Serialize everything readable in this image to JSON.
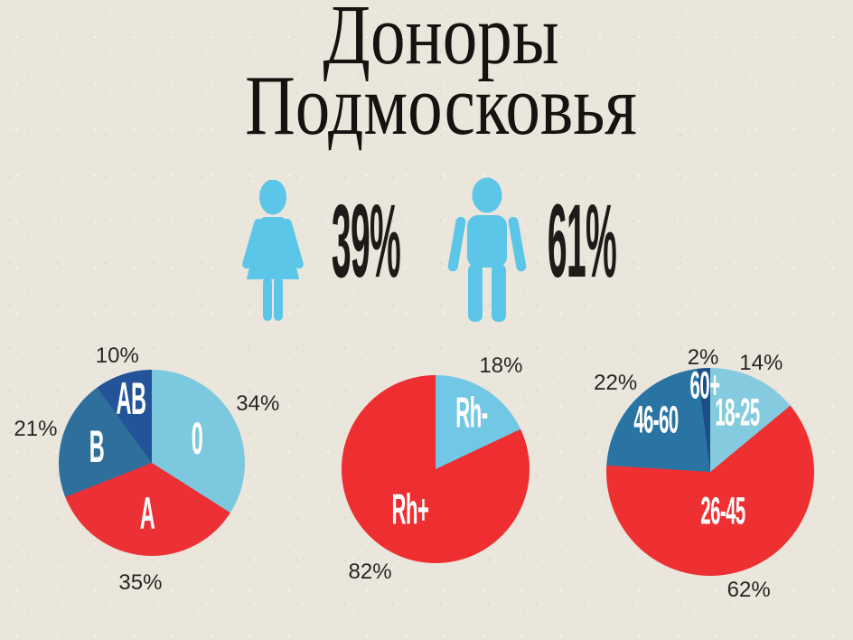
{
  "title": {
    "line1": "Доноры",
    "line2": "Подмосковья"
  },
  "gender_stats": {
    "female_percent": "39%",
    "male_percent": "61%"
  },
  "colors": {
    "background": "#eae6dc",
    "title_text": "#15120f",
    "callout_text": "#2a2523",
    "icon_blue": "#5cc6e8",
    "pie_label_text": "#ffffff"
  },
  "chart_data": [
    {
      "type": "pie",
      "name": "blood-groups",
      "start": "top",
      "direction": "clockwise",
      "legend_position": "labels-inside",
      "slices": [
        {
          "label": "0",
          "value_percent": 34,
          "callout": "34%",
          "color": "#7cc8de",
          "label_r": 0.55,
          "callout_r": 1.3
        },
        {
          "label": "A",
          "value_percent": 35,
          "callout": "35%",
          "color": "#ec3136",
          "label_r": 0.55,
          "callout_r": 1.3
        },
        {
          "label": "B",
          "value_percent": 21,
          "callout": "21%",
          "color": "#2e6f9b",
          "label_r": 0.62,
          "callout_r": 1.3
        },
        {
          "label": "AB",
          "value_percent": 10,
          "callout": "10%",
          "color": "#235398",
          "label_r": 0.72,
          "callout_r": 1.2
        }
      ]
    },
    {
      "type": "pie",
      "name": "rh-factor",
      "start": "top",
      "direction": "clockwise",
      "legend_position": "labels-inside",
      "slices": [
        {
          "label": "Rh-",
          "value_percent": 18,
          "callout": "18%",
          "color": "#72c8e4",
          "label_r": 0.72,
          "callout_r": 1.3
        },
        {
          "label": "Rh+",
          "value_percent": 82,
          "callout": "82%",
          "color": "#ee2e30",
          "label_r": 0.5,
          "callout_r": 1.3
        }
      ]
    },
    {
      "type": "pie",
      "name": "age-groups",
      "start": "top",
      "direction": "clockwise",
      "legend_position": "labels-inside",
      "slices": [
        {
          "label": "18-25",
          "value_percent": 14,
          "callout": "14%",
          "color": "#85cbe0",
          "label_r": 0.62,
          "callout_r": 1.15
        },
        {
          "label": "26-45",
          "value_percent": 62,
          "callout": "62%",
          "color": "#ee3032",
          "label_r": 0.4,
          "callout_r": 1.2
        },
        {
          "label": "46-60",
          "value_percent": 22,
          "callout": "22%",
          "color": "#2a74a4",
          "label_r": 0.72,
          "callout_r": 1.25
        },
        {
          "label": "60+",
          "value_percent": 2,
          "callout": "2%",
          "color": "#1c4f86",
          "label_r": 0.83,
          "callout_r": 1.1
        }
      ]
    }
  ]
}
